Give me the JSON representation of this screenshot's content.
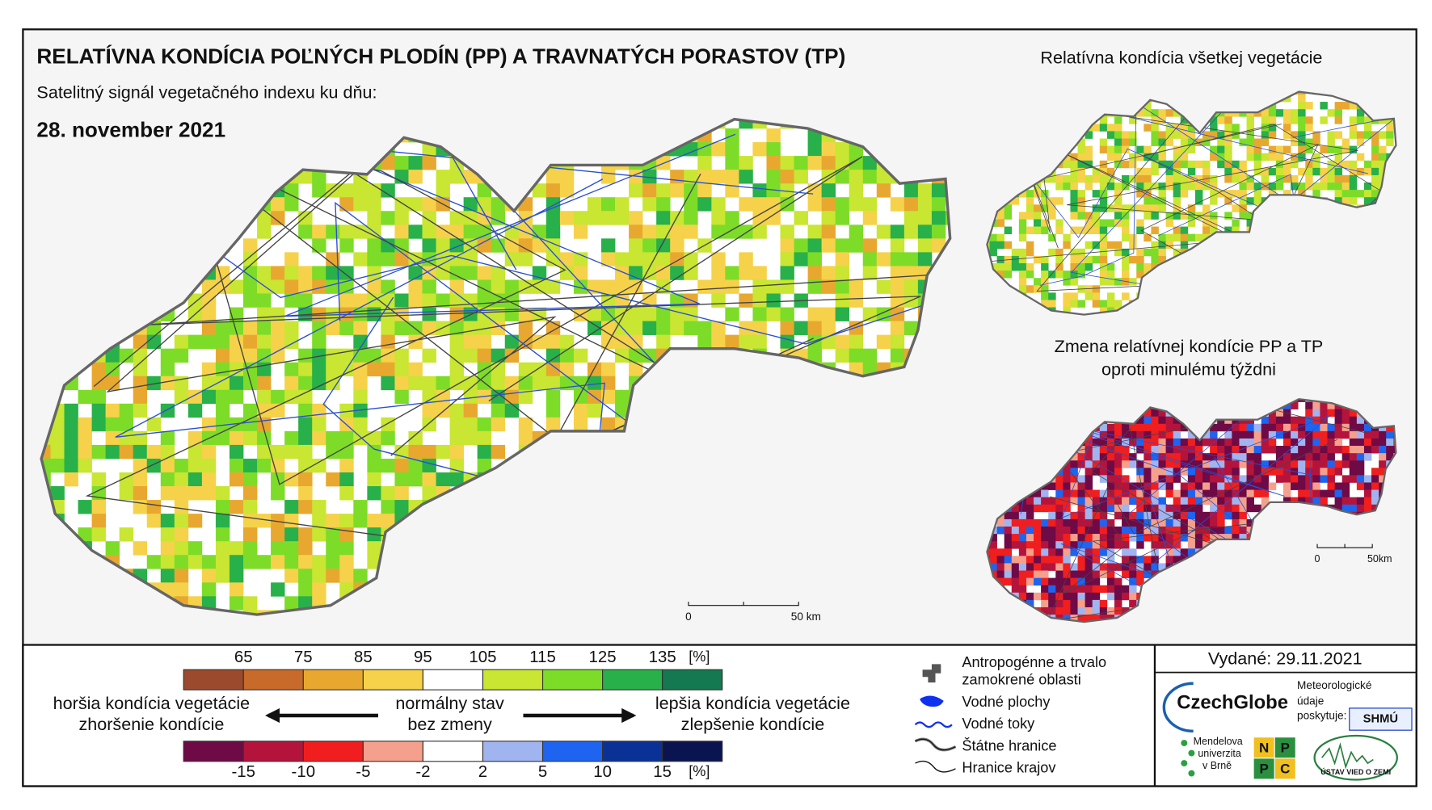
{
  "header": {
    "title": "RELATÍVNA KONDÍCIA POĽNÝCH PLODÍN (PP) A TRAVNATÝCH PORASTOV (TP)",
    "subtitle": "Satelitný signál vegetačného indexu ku dňu:",
    "date": "28. november 2021"
  },
  "insets": [
    {
      "title": "Relatívna kondícia všetkej vegetácie"
    },
    {
      "title_lines": [
        "Zmena relatívnej kondície PP a TP",
        "oproti minulému týždni"
      ]
    }
  ],
  "scale_main": {
    "start": "0",
    "end": "50 km"
  },
  "scale_inset": {
    "start": "0",
    "end": "50km"
  },
  "condition_legend": {
    "ticks": [
      65,
      75,
      85,
      95,
      105,
      115,
      125,
      135
    ],
    "unit": "[%]",
    "colors": [
      "#9b4a2e",
      "#c86a2a",
      "#e8a830",
      "#f5d24a",
      "#ffffff",
      "#c8e632",
      "#7ddc28",
      "#28b04a",
      "#147850"
    ]
  },
  "change_legend": {
    "ticks": [
      -15,
      -10,
      -5,
      -2,
      2,
      5,
      10,
      15
    ],
    "unit": "[%]",
    "colors": [
      "#6e0a46",
      "#b4143c",
      "#f01e1e",
      "#f5a08c",
      "#ffffff",
      "#a0b4f0",
      "#1e64f0",
      "#0a3296",
      "#0a1450"
    ]
  },
  "captions": {
    "left": [
      "horšia kondícia vegetácie",
      "zhoršenie kondície"
    ],
    "center": [
      "normálny stav",
      "bez zmeny"
    ],
    "right": [
      "lepšia kondícia vegetácie",
      "zlepšenie kondície"
    ]
  },
  "map_legend": [
    {
      "label_lines": [
        "Antropogénne a trvalo",
        "zamokrené oblasti"
      ]
    },
    {
      "label_lines": [
        "Vodné plochy"
      ]
    },
    {
      "label_lines": [
        "Vodné toky"
      ]
    },
    {
      "label_lines": [
        "Štátne hranice"
      ]
    },
    {
      "label_lines": [
        "Hranice krajov"
      ]
    }
  ],
  "issued": "Vydané: 29.11.2021",
  "logos": {
    "czechglobe": "CzechGlobe",
    "meteo": [
      "Meteorologické",
      "údaje",
      "poskytuje:"
    ],
    "shmu": "SHMÚ",
    "mendel": [
      "Mendelova",
      "univerzita",
      "v Brně"
    ],
    "nppc": [
      "N",
      "P",
      "P",
      "C"
    ],
    "uvz": "ÚSTAV VIED O ZEMI"
  }
}
